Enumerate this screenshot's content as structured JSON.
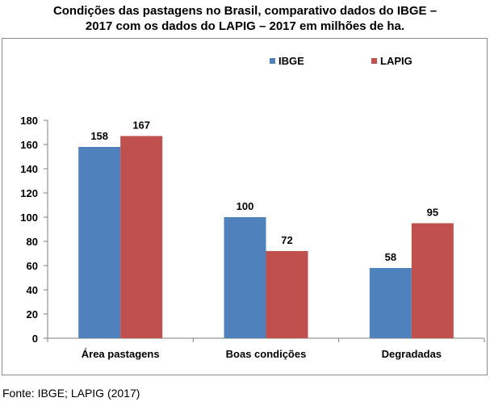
{
  "header": {
    "title_line1": "Condições das pastagens no Brasil, comparativo dados do IBGE –",
    "title_line2": "2017 com os dados do LAPIG – 2017 em milhões de ha."
  },
  "source": "Fonte: IBGE; LAPIG (2017)",
  "chart_data": {
    "type": "bar",
    "categories": [
      "Área pastagens",
      "Boas condições",
      "Degradadas"
    ],
    "series": [
      {
        "name": "IBGE",
        "values": [
          158,
          100,
          58
        ],
        "color": "#4f81bd"
      },
      {
        "name": "LAPIG",
        "values": [
          167,
          72,
          95
        ],
        "color": "#c0504d"
      }
    ],
    "ylim": [
      0,
      180
    ],
    "yticks": [
      0,
      20,
      40,
      60,
      80,
      100,
      120,
      140,
      160,
      180
    ],
    "legend_position": "top-right",
    "data_labels": true,
    "grid": false
  }
}
